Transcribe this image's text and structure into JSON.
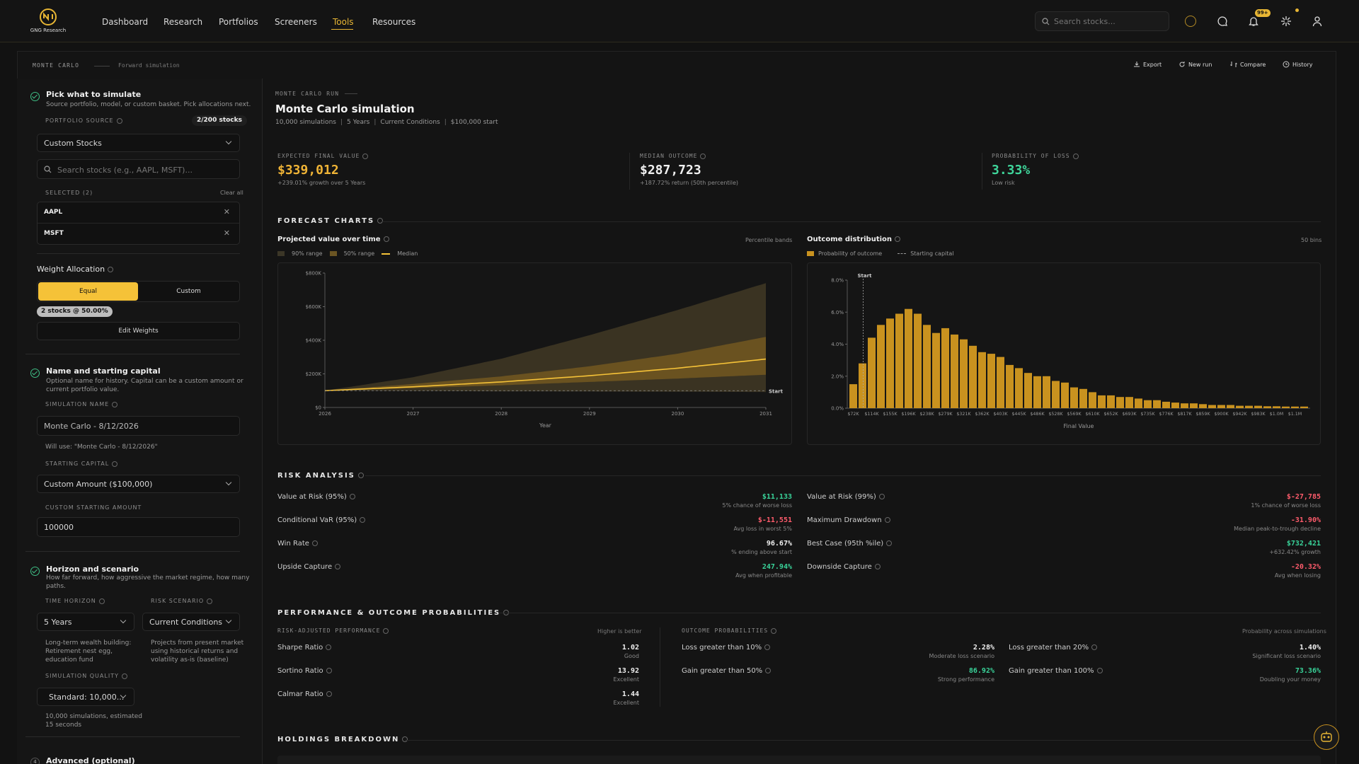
{
  "app": {
    "logo_text": "GNG Research"
  },
  "nav": [
    {
      "label": "Dashboard"
    },
    {
      "label": "Research"
    },
    {
      "label": "Portfolios"
    },
    {
      "label": "Screeners"
    },
    {
      "label": "Tools",
      "active": true
    },
    {
      "label": "Resources"
    }
  ],
  "header": {
    "search_placeholder": "Search stocks...",
    "notification_badge": "99+"
  },
  "subheader": {
    "crumb": "MONTE CARLO",
    "sub": "Forward simulation",
    "actions": {
      "export": "Export",
      "new_run": "New run",
      "compare": "Compare",
      "history": "History"
    }
  },
  "left": {
    "s1": {
      "title": "Pick what to simulate",
      "desc": "Source portfolio, model, or custom basket. Pick allocations next.",
      "source_label": "PORTFOLIO SOURCE",
      "source_count": "2/200 stocks",
      "source_value": "Custom Stocks",
      "search_placeholder": "Search stocks (e.g., AAPL, MSFT)...",
      "selected_label": "SELECTED (2)",
      "clear_all": "Clear all",
      "tickers": [
        "AAPL",
        "MSFT"
      ],
      "weight_title": "Weight Allocation",
      "equal": "Equal",
      "custom": "Custom",
      "weight_badge": "2 stocks @ 50.00%",
      "edit_weights": "Edit Weights"
    },
    "s2": {
      "title": "Name and starting capital",
      "desc1": "Optional name for history. Capital can be a custom amount or",
      "desc2": "current portfolio value.",
      "name_label": "SIMULATION NAME",
      "name_value": "Monte Carlo - 8/12/2026",
      "name_hint": "Will use: \"Monte Carlo - 8/12/2026\"",
      "capital_label": "STARTING CAPITAL",
      "capital_value": "Custom Amount ($100,000)",
      "custom_label": "CUSTOM STARTING AMOUNT",
      "custom_value": "100000"
    },
    "s3": {
      "title": "Horizon and scenario",
      "desc1": "How far forward, how aggressive the market regime, how many",
      "desc2": "paths.",
      "horizon_label": "TIME HORIZON",
      "horizon_value": "5 Years",
      "horizon_desc": [
        "Long-term wealth building:",
        "Retirement nest egg,",
        "education fund"
      ],
      "scenario_label": "RISK SCENARIO",
      "scenario_value": "Current Conditions",
      "scenario_desc": [
        "Projects from present market",
        "using historical returns and",
        "volatility as-is (baseline)"
      ],
      "quality_label": "SIMULATION QUALITY",
      "quality_value": "Standard: 10,000...",
      "quality_desc": [
        "10,000 simulations, estimated",
        "15 seconds"
      ]
    },
    "s4": {
      "num": "4",
      "title": "Advanced (optional)"
    }
  },
  "run": {
    "tag": "MONTE CARLO RUN",
    "title": "Monte Carlo simulation",
    "meta": [
      "10,000 simulations",
      "5 Years",
      "Current Conditions",
      "$100,000 start"
    ]
  },
  "stats": [
    {
      "label": "EXPECTED FINAL VALUE",
      "value": "$339,012",
      "sub": "+239.01% growth over 5 Years",
      "color": "#f0b436"
    },
    {
      "label": "MEDIAN OUTCOME",
      "value": "$287,723",
      "sub": "+187.72% return (50th percentile)",
      "color": "#f0f0f0"
    },
    {
      "label": "PROBABILITY OF LOSS",
      "value": "3.33%",
      "sub": "Low risk",
      "color": "#3fd69b"
    }
  ],
  "forecast": {
    "header": "FORECAST CHARTS",
    "left_title": "Projected value over time",
    "left_right": "Percentile bands",
    "left_legend": [
      "90% range",
      "50% range",
      "Median"
    ],
    "right_title": "Outcome distribution",
    "right_right": "50 bins",
    "right_legend": [
      "Probability of outcome",
      "Starting capital"
    ],
    "start_label": "Start"
  },
  "chart_data": [
    {
      "type": "area",
      "title": "Projected value over time",
      "xlabel": "Year",
      "ylabel": "",
      "x": [
        2026,
        2027,
        2028,
        2029,
        2030,
        2031
      ],
      "xlim": [
        2026,
        2031
      ],
      "ylim": [
        0,
        800000
      ],
      "yticks": [
        "$0",
        "$200K",
        "$400K",
        "$600K",
        "$800K"
      ],
      "series": [
        {
          "name": "90% range",
          "lower": [
            100000,
            98000,
            96000,
            95000,
            94000,
            92000
          ],
          "upper": [
            100000,
            180000,
            290000,
            430000,
            580000,
            740000
          ]
        },
        {
          "name": "50% range",
          "lower": [
            100000,
            115000,
            132000,
            152000,
            172000,
            195000
          ],
          "upper": [
            100000,
            140000,
            185000,
            245000,
            320000,
            420000
          ]
        },
        {
          "name": "Median",
          "values": [
            100000,
            123000,
            152000,
            189000,
            234000,
            288000
          ]
        }
      ],
      "annotation": "Start",
      "start_value": 100000
    },
    {
      "type": "bar",
      "title": "Outcome distribution",
      "xlabel": "Final Value",
      "ylabel": "",
      "ylim": [
        0,
        8
      ],
      "yticks": [
        "0.0%",
        "2.0%",
        "4.0%",
        "6.0%",
        "8.0%"
      ],
      "tick_labels": [
        "$72K",
        "$114K",
        "$155K",
        "$196K",
        "$238K",
        "$279K",
        "$321K",
        "$362K",
        "$403K",
        "$445K",
        "$486K",
        "$528K",
        "$569K",
        "$610K",
        "$652K",
        "$693K",
        "$735K",
        "$776K",
        "$817K",
        "$859K",
        "$900K",
        "$942K",
        "$983K",
        "$1.0M",
        "$1.1M"
      ],
      "values": [
        1.5,
        2.8,
        4.4,
        5.2,
        5.6,
        5.9,
        6.2,
        5.9,
        5.2,
        4.7,
        5.0,
        4.6,
        4.3,
        3.9,
        3.5,
        3.4,
        3.2,
        2.7,
        2.5,
        2.2,
        2.0,
        2.0,
        1.7,
        1.6,
        1.3,
        1.2,
        1.0,
        0.8,
        0.8,
        0.7,
        0.7,
        0.6,
        0.5,
        0.5,
        0.4,
        0.35,
        0.3,
        0.3,
        0.25,
        0.2,
        0.2,
        0.2,
        0.15,
        0.15,
        0.15,
        0.12,
        0.12,
        0.1,
        0.1,
        0.1
      ],
      "start_marker": "Start"
    }
  ],
  "risk": {
    "header": "RISK ANALYSIS",
    "left": [
      {
        "label": "Value at Risk (95%)",
        "value": "$11,133",
        "sub": "5% chance of worse loss",
        "tone": "green"
      },
      {
        "label": "Conditional VaR (95%)",
        "value": "$-11,551",
        "sub": "Avg loss in worst 5%",
        "tone": "red"
      },
      {
        "label": "Win Rate",
        "value": "96.67%",
        "sub": "% ending above start",
        "tone": "white"
      },
      {
        "label": "Upside Capture",
        "value": "247.94%",
        "sub": "Avg when profitable",
        "tone": "green"
      }
    ],
    "right": [
      {
        "label": "Value at Risk (99%)",
        "value": "$-27,785",
        "sub": "1% chance of worse loss",
        "tone": "red"
      },
      {
        "label": "Maximum Drawdown",
        "value": "-31.90%",
        "sub": "Median peak-to-trough decline",
        "tone": "red"
      },
      {
        "label": "Best Case (95th %ile)",
        "value": "$732,421",
        "sub": "+632.42% growth",
        "tone": "green"
      },
      {
        "label": "Downside Capture",
        "value": "-20.32%",
        "sub": "Avg when losing",
        "tone": "red"
      }
    ]
  },
  "performance": {
    "header": "PERFORMANCE & OUTCOME PROBABILITIES",
    "risk_adj_label": "RISK-ADJUSTED PERFORMANCE",
    "risk_adj_right": "Higher is better",
    "risk_adj": [
      {
        "label": "Sharpe Ratio",
        "value": "1.02",
        "sub": "Good"
      },
      {
        "label": "Sortino Ratio",
        "value": "13.92",
        "sub": "Excellent"
      },
      {
        "label": "Calmar Ratio",
        "value": "1.44",
        "sub": "Excellent"
      }
    ],
    "outcome_label": "OUTCOME PROBABILITIES",
    "outcome_right": "Probability across simulations",
    "outcomes_left": [
      {
        "label": "Loss greater than 10%",
        "value": "2.28%",
        "sub": "Moderate loss scenario",
        "tone": "white"
      },
      {
        "label": "Gain greater than 50%",
        "value": "86.92%",
        "sub": "Strong performance",
        "tone": "green"
      }
    ],
    "outcomes_right": [
      {
        "label": "Loss greater than 20%",
        "value": "1.40%",
        "sub": "Significant loss scenario",
        "tone": "white"
      },
      {
        "label": "Gain greater than 100%",
        "value": "73.36%",
        "sub": "Doubling your money",
        "tone": "green"
      }
    ]
  },
  "holdings": {
    "header": "HOLDINGS BREAKDOWN"
  },
  "colors": {
    "accent": "#e8b634",
    "green": "#39d49a",
    "red": "#ff5c6c"
  }
}
